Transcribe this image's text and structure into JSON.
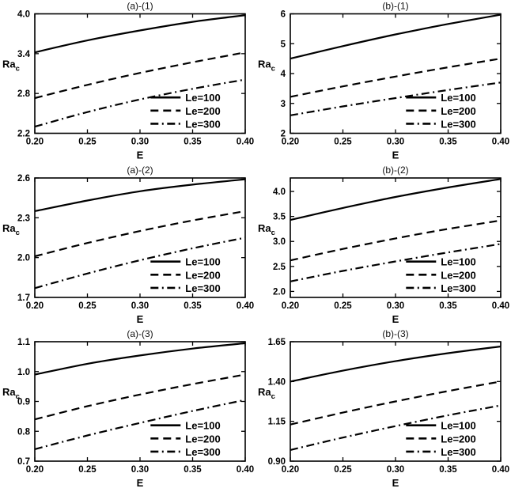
{
  "figure": {
    "background": "#ffffff",
    "line_color": "#000000",
    "xlabel": "E",
    "ylabel_main": "Ra",
    "ylabel_sub": "c"
  },
  "chart_data": [
    {
      "type": "line",
      "title": "(a)-(1)",
      "xlabel": "E",
      "ylabel": "Ra_c",
      "grid": false,
      "legend_position": "lower right",
      "xlim": [
        0.2,
        0.4
      ],
      "ylim": [
        2.2,
        4.0
      ],
      "xticks": [
        0.2,
        0.25,
        0.3,
        0.35,
        0.4
      ],
      "xtick_labels": [
        "0.20",
        "0.25",
        "0.30",
        "0.35",
        "0.40"
      ],
      "yticks": [
        2.2,
        2.8,
        3.4,
        4.0
      ],
      "ytick_labels": [
        "2.2",
        "2.8",
        "3.4",
        "4.0"
      ],
      "x": [
        0.2,
        0.25,
        0.3,
        0.35,
        0.4
      ],
      "series": [
        {
          "name": "Le=100",
          "style": "solid",
          "values": [
            3.42,
            3.6,
            3.75,
            3.88,
            3.98
          ]
        },
        {
          "name": "Le=200",
          "style": "dashed",
          "values": [
            2.73,
            2.93,
            3.11,
            3.27,
            3.42
          ]
        },
        {
          "name": "Le=300",
          "style": "dashdot",
          "values": [
            2.3,
            2.52,
            2.71,
            2.87,
            3.01
          ]
        }
      ]
    },
    {
      "type": "line",
      "title": "(b)-(1)",
      "xlabel": "E",
      "ylabel": "Ra_c",
      "grid": false,
      "legend_position": "lower right",
      "xlim": [
        0.2,
        0.4
      ],
      "ylim": [
        2,
        6
      ],
      "xticks": [
        0.2,
        0.25,
        0.3,
        0.35,
        0.4
      ],
      "xtick_labels": [
        "0.20",
        "0.25",
        "0.30",
        "0.35",
        "0.40"
      ],
      "yticks": [
        2,
        3,
        4,
        5,
        6
      ],
      "ytick_labels": [
        "2",
        "3",
        "4",
        "5",
        "6"
      ],
      "x": [
        0.2,
        0.25,
        0.3,
        0.35,
        0.4
      ],
      "series": [
        {
          "name": "Le=100",
          "style": "solid",
          "values": [
            4.5,
            4.92,
            5.31,
            5.66,
            5.97
          ]
        },
        {
          "name": "Le=200",
          "style": "dashed",
          "values": [
            3.22,
            3.57,
            3.9,
            4.21,
            4.5
          ]
        },
        {
          "name": "Le=300",
          "style": "dashdot",
          "values": [
            2.6,
            2.9,
            3.18,
            3.45,
            3.7
          ]
        }
      ]
    },
    {
      "type": "line",
      "title": "(a)-(2)",
      "xlabel": "E",
      "ylabel": "Ra_c",
      "grid": false,
      "legend_position": "lower right",
      "xlim": [
        0.2,
        0.4
      ],
      "ylim": [
        1.7,
        2.6
      ],
      "xticks": [
        0.2,
        0.25,
        0.3,
        0.35,
        0.4
      ],
      "xtick_labels": [
        "0.20",
        "0.25",
        "0.30",
        "0.35",
        "0.40"
      ],
      "yticks": [
        1.7,
        2.0,
        2.3,
        2.6
      ],
      "ytick_labels": [
        "1.7",
        "2.0",
        "2.3",
        "2.6"
      ],
      "x": [
        0.2,
        0.25,
        0.3,
        0.35,
        0.4
      ],
      "series": [
        {
          "name": "Le=100",
          "style": "solid",
          "values": [
            2.35,
            2.43,
            2.5,
            2.55,
            2.59
          ]
        },
        {
          "name": "Le=200",
          "style": "dashed",
          "values": [
            2.01,
            2.11,
            2.2,
            2.28,
            2.35
          ]
        },
        {
          "name": "Le=300",
          "style": "dashdot",
          "values": [
            1.77,
            1.88,
            1.98,
            2.07,
            2.15
          ]
        }
      ]
    },
    {
      "type": "line",
      "title": "(b)-(2)",
      "xlabel": "E",
      "ylabel": "Ra_c",
      "grid": false,
      "legend_position": "lower right",
      "xlim": [
        0.2,
        0.4
      ],
      "ylim": [
        1.88,
        4.27
      ],
      "xticks": [
        0.2,
        0.25,
        0.3,
        0.35,
        0.4
      ],
      "xtick_labels": [
        "0.20",
        "0.25",
        "0.30",
        "0.35",
        "0.40"
      ],
      "yticks": [
        2.0,
        2.5,
        3.0,
        3.5,
        4.0
      ],
      "ytick_labels": [
        "2.0",
        "2.5",
        "3.0",
        "3.5",
        "4.0"
      ],
      "x": [
        0.2,
        0.25,
        0.3,
        0.35,
        0.4
      ],
      "series": [
        {
          "name": "Le=100",
          "style": "solid",
          "values": [
            3.43,
            3.67,
            3.89,
            4.08,
            4.25
          ]
        },
        {
          "name": "Le=200",
          "style": "dashed",
          "values": [
            2.62,
            2.85,
            3.06,
            3.25,
            3.42
          ]
        },
        {
          "name": "Le=300",
          "style": "dashdot",
          "values": [
            2.2,
            2.41,
            2.6,
            2.78,
            2.95
          ]
        }
      ]
    },
    {
      "type": "line",
      "title": "(a)-(3)",
      "xlabel": "E",
      "ylabel": "Ra_c",
      "grid": false,
      "legend_position": "lower right",
      "xlim": [
        0.2,
        0.4
      ],
      "ylim": [
        0.7,
        1.1
      ],
      "xticks": [
        0.2,
        0.25,
        0.3,
        0.35,
        0.4
      ],
      "xtick_labels": [
        "0.20",
        "0.25",
        "0.30",
        "0.35",
        "0.40"
      ],
      "yticks": [
        0.7,
        0.8,
        0.9,
        1.0,
        1.1
      ],
      "ytick_labels": [
        "0.7",
        "0.8",
        "0.9",
        "1.0",
        "1.1"
      ],
      "x": [
        0.2,
        0.25,
        0.3,
        0.35,
        0.4
      ],
      "series": [
        {
          "name": "Le=100",
          "style": "solid",
          "values": [
            0.99,
            1.026,
            1.054,
            1.077,
            1.095
          ]
        },
        {
          "name": "Le=200",
          "style": "dashed",
          "values": [
            0.84,
            0.884,
            0.923,
            0.958,
            0.99
          ]
        },
        {
          "name": "Le=300",
          "style": "dashdot",
          "values": [
            0.74,
            0.786,
            0.828,
            0.868,
            0.905
          ]
        }
      ]
    },
    {
      "type": "line",
      "title": "(b)-(3)",
      "xlabel": "E",
      "ylabel": "Ra_c",
      "grid": false,
      "legend_position": "lower right",
      "xlim": [
        0.2,
        0.4
      ],
      "ylim": [
        0.9,
        1.65
      ],
      "xticks": [
        0.2,
        0.25,
        0.3,
        0.35,
        0.4
      ],
      "xtick_labels": [
        "0.20",
        "0.25",
        "0.30",
        "0.35",
        "0.40"
      ],
      "yticks": [
        0.9,
        1.15,
        1.4,
        1.65
      ],
      "ytick_labels": [
        "0.90",
        "1.15",
        "1.40",
        "1.65"
      ],
      "x": [
        0.2,
        0.25,
        0.3,
        0.35,
        0.4
      ],
      "series": [
        {
          "name": "Le=100",
          "style": "solid",
          "values": [
            1.4,
            1.468,
            1.528,
            1.578,
            1.62
          ]
        },
        {
          "name": "Le=200",
          "style": "dashed",
          "values": [
            1.13,
            1.205,
            1.275,
            1.34,
            1.4
          ]
        },
        {
          "name": "Le=300",
          "style": "dashdot",
          "values": [
            0.97,
            1.048,
            1.12,
            1.188,
            1.25
          ]
        }
      ]
    }
  ]
}
